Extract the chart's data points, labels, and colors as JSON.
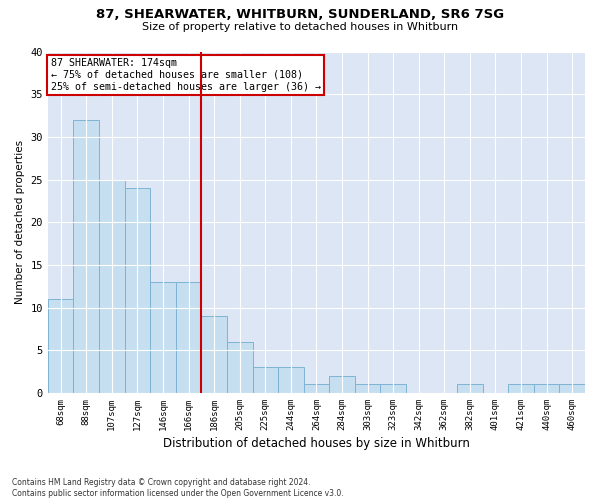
{
  "title_line1": "87, SHEARWATER, WHITBURN, SUNDERLAND, SR6 7SG",
  "title_line2": "Size of property relative to detached houses in Whitburn",
  "xlabel": "Distribution of detached houses by size in Whitburn",
  "ylabel": "Number of detached properties",
  "footer_line1": "Contains HM Land Registry data © Crown copyright and database right 2024.",
  "footer_line2": "Contains public sector information licensed under the Open Government Licence v3.0.",
  "categories": [
    "68sqm",
    "88sqm",
    "107sqm",
    "127sqm",
    "146sqm",
    "166sqm",
    "186sqm",
    "205sqm",
    "225sqm",
    "244sqm",
    "264sqm",
    "284sqm",
    "303sqm",
    "323sqm",
    "342sqm",
    "362sqm",
    "382sqm",
    "401sqm",
    "421sqm",
    "440sqm",
    "460sqm"
  ],
  "values": [
    11,
    32,
    25,
    24,
    13,
    13,
    9,
    6,
    3,
    3,
    1,
    2,
    1,
    1,
    0,
    0,
    1,
    0,
    1,
    1,
    1
  ],
  "bar_color": "#c6dff0",
  "bar_edge_color": "#7fb3d3",
  "bg_color": "#dce6f5",
  "vline_x": 5.5,
  "vline_color": "#cc0000",
  "annotation_text": "87 SHEARWATER: 174sqm\n← 75% of detached houses are smaller (108)\n25% of semi-detached houses are larger (36) →",
  "annotation_box_color": "#cc0000",
  "ylim": [
    0,
    40
  ],
  "yticks": [
    0,
    5,
    10,
    15,
    20,
    25,
    30,
    35,
    40
  ]
}
